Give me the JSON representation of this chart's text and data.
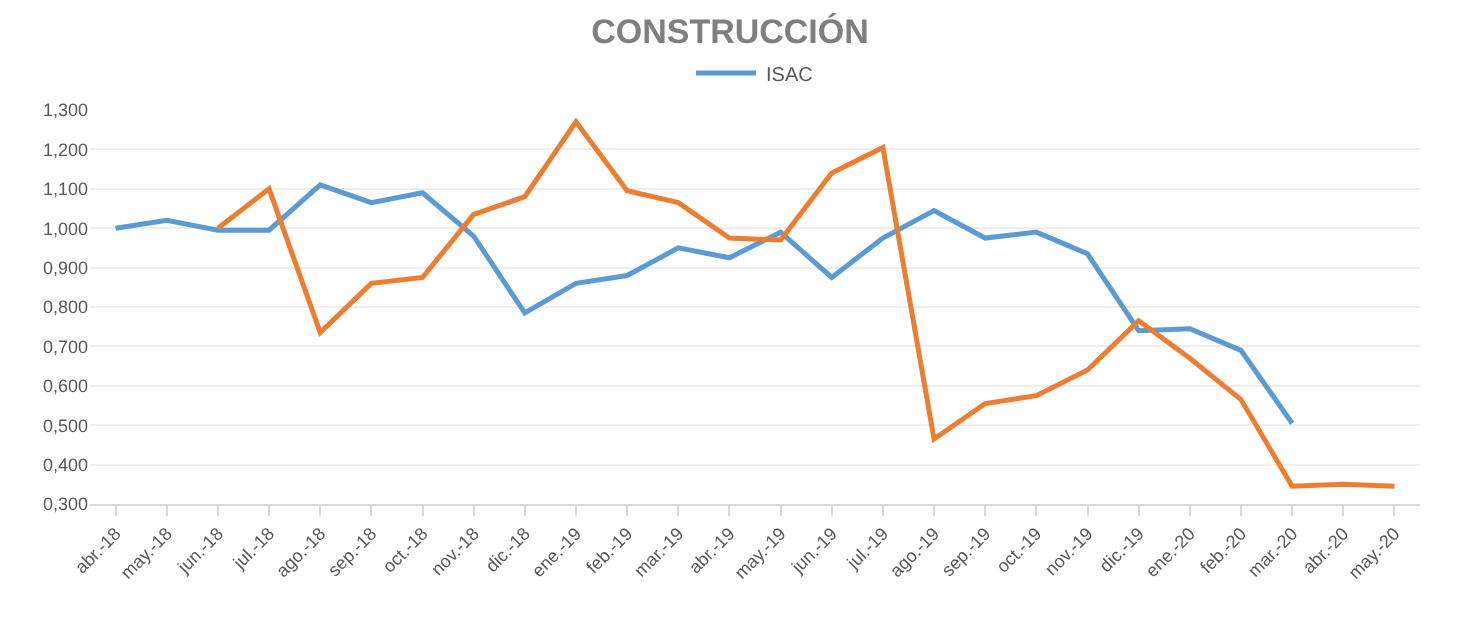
{
  "chart_data": {
    "type": "line",
    "title": "CONSTRUCCIÓN",
    "categories": [
      "abr.-18",
      "may.-18",
      "jun.-18",
      "jul.-18",
      "ago.-18",
      "sep.-18",
      "oct.-18",
      "nov.-18",
      "dic.-18",
      "ene.-19",
      "feb.-19",
      "mar.-19",
      "abr.-19",
      "may.-19",
      "jun.-19",
      "jul.-19",
      "ago.-19",
      "sep.-19",
      "oct.-19",
      "nov.-19",
      "dic.-19",
      "ene.-20",
      "feb.-20",
      "mar.-20",
      "abr.-20",
      "may.-20"
    ],
    "series": [
      {
        "name": "ISAC",
        "color": "#5b9bd5",
        "values": [
          1.0,
          1.02,
          0.995,
          0.995,
          1.11,
          1.065,
          1.09,
          0.98,
          0.785,
          0.86,
          0.88,
          0.95,
          0.925,
          0.99,
          0.875,
          0.975,
          1.045,
          0.975,
          0.99,
          0.935,
          0.74,
          0.745,
          0.69,
          0.505,
          null,
          null
        ]
      },
      {
        "color": "#ed7d31",
        "values": [
          null,
          null,
          1.0,
          1.1,
          0.735,
          0.86,
          0.875,
          1.035,
          1.08,
          1.27,
          1.095,
          1.065,
          0.975,
          0.97,
          1.14,
          1.205,
          0.465,
          0.555,
          0.575,
          0.64,
          0.765,
          0.67,
          0.565,
          0.345,
          0.35,
          0.345
        ]
      }
    ],
    "ylim": [
      0.3,
      1.3
    ],
    "yticks": [
      {
        "value": 0.3,
        "label": "0,300"
      },
      {
        "value": 0.4,
        "label": "0,400"
      },
      {
        "value": 0.5,
        "label": "0,500"
      },
      {
        "value": 0.6,
        "label": "0,600"
      },
      {
        "value": 0.7,
        "label": "0,700"
      },
      {
        "value": 0.8,
        "label": "0,800"
      },
      {
        "value": 0.9,
        "label": "0,900"
      },
      {
        "value": 1.0,
        "label": "1,000"
      },
      {
        "value": 1.1,
        "label": "1,100"
      },
      {
        "value": 1.2,
        "label": "1,200"
      },
      {
        "value": 1.3,
        "label": "1,300"
      }
    ],
    "grid": "y",
    "legend": "top",
    "marker": "none",
    "line_style": "solid"
  }
}
